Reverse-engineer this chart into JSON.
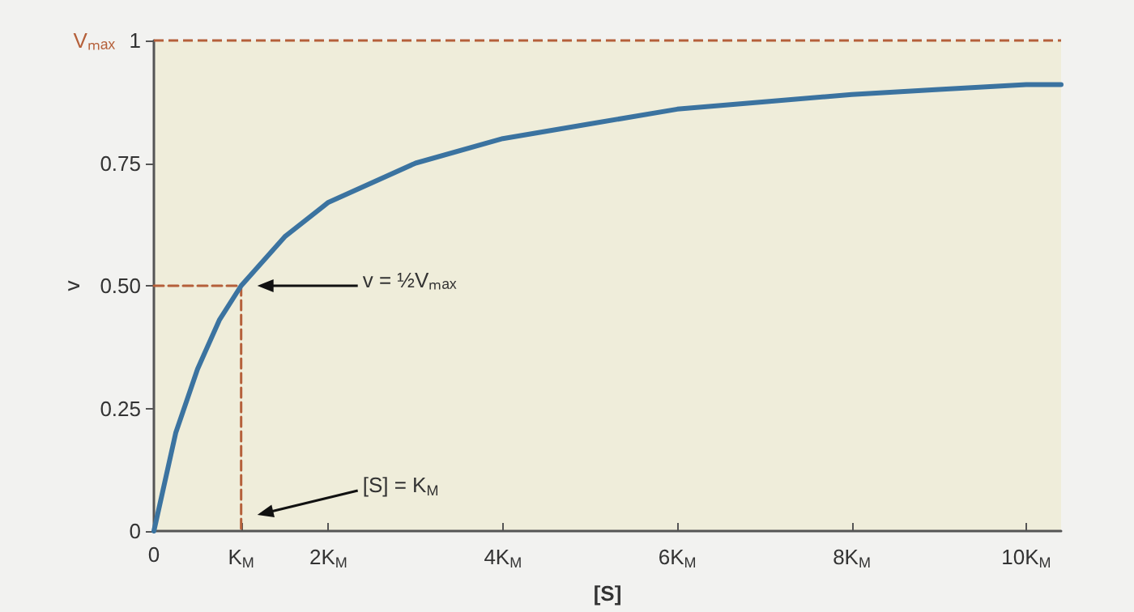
{
  "chart_data": {
    "type": "line",
    "xlabel": "[S]",
    "ylabel": "v",
    "xlim": [
      0,
      10.4
    ],
    "xticks": [
      0,
      {
        "value": 1,
        "label": "K$_{M}$"
      },
      {
        "value": 2,
        "label": "2K$_{M}$"
      },
      {
        "value": 4,
        "label": "4K$_{M}$"
      },
      {
        "value": 6,
        "label": "6K$_{M}$"
      },
      {
        "value": 8,
        "label": "8K$_{M}$"
      },
      {
        "value": 10,
        "label": "10K$_{M}$"
      }
    ],
    "ylim": [
      0,
      1
    ],
    "yticks": [
      0,
      0.25,
      {
        "value": 0.5,
        "label": "0.50"
      },
      0.75,
      1
    ],
    "series": [
      {
        "color": "#3b73a0",
        "x": [
          0,
          0.25,
          0.5,
          0.75,
          1,
          1.5,
          2,
          3,
          4,
          5,
          6,
          7,
          8,
          9,
          10,
          10.4
        ],
        "values": [
          0,
          0.2,
          0.33,
          0.43,
          0.5,
          0.6,
          0.67,
          0.75,
          0.8,
          0.83,
          0.86,
          0.875,
          0.89,
          0.9,
          0.91,
          0.91
        ]
      },
      {
        "color": "#b5603a",
        "line_style": "dashed",
        "x": [
          0,
          1
        ],
        "values": [
          0.5,
          0.5
        ]
      },
      {
        "color": "#b5603a",
        "line_style": "dashed",
        "x": [
          1,
          1
        ],
        "values": [
          0.5,
          0
        ]
      }
    ],
    "ref_lines": [
      {
        "axis": "y",
        "value": 1,
        "label": "Vₘₐₓ",
        "color": "#b5603a",
        "line_style": "dashed"
      }
    ],
    "annotations": [
      "v = ½Vₘₐₓ",
      "[S] = K$_{M}$"
    ],
    "marker": "none",
    "line_style": "solid",
    "grid": false
  }
}
